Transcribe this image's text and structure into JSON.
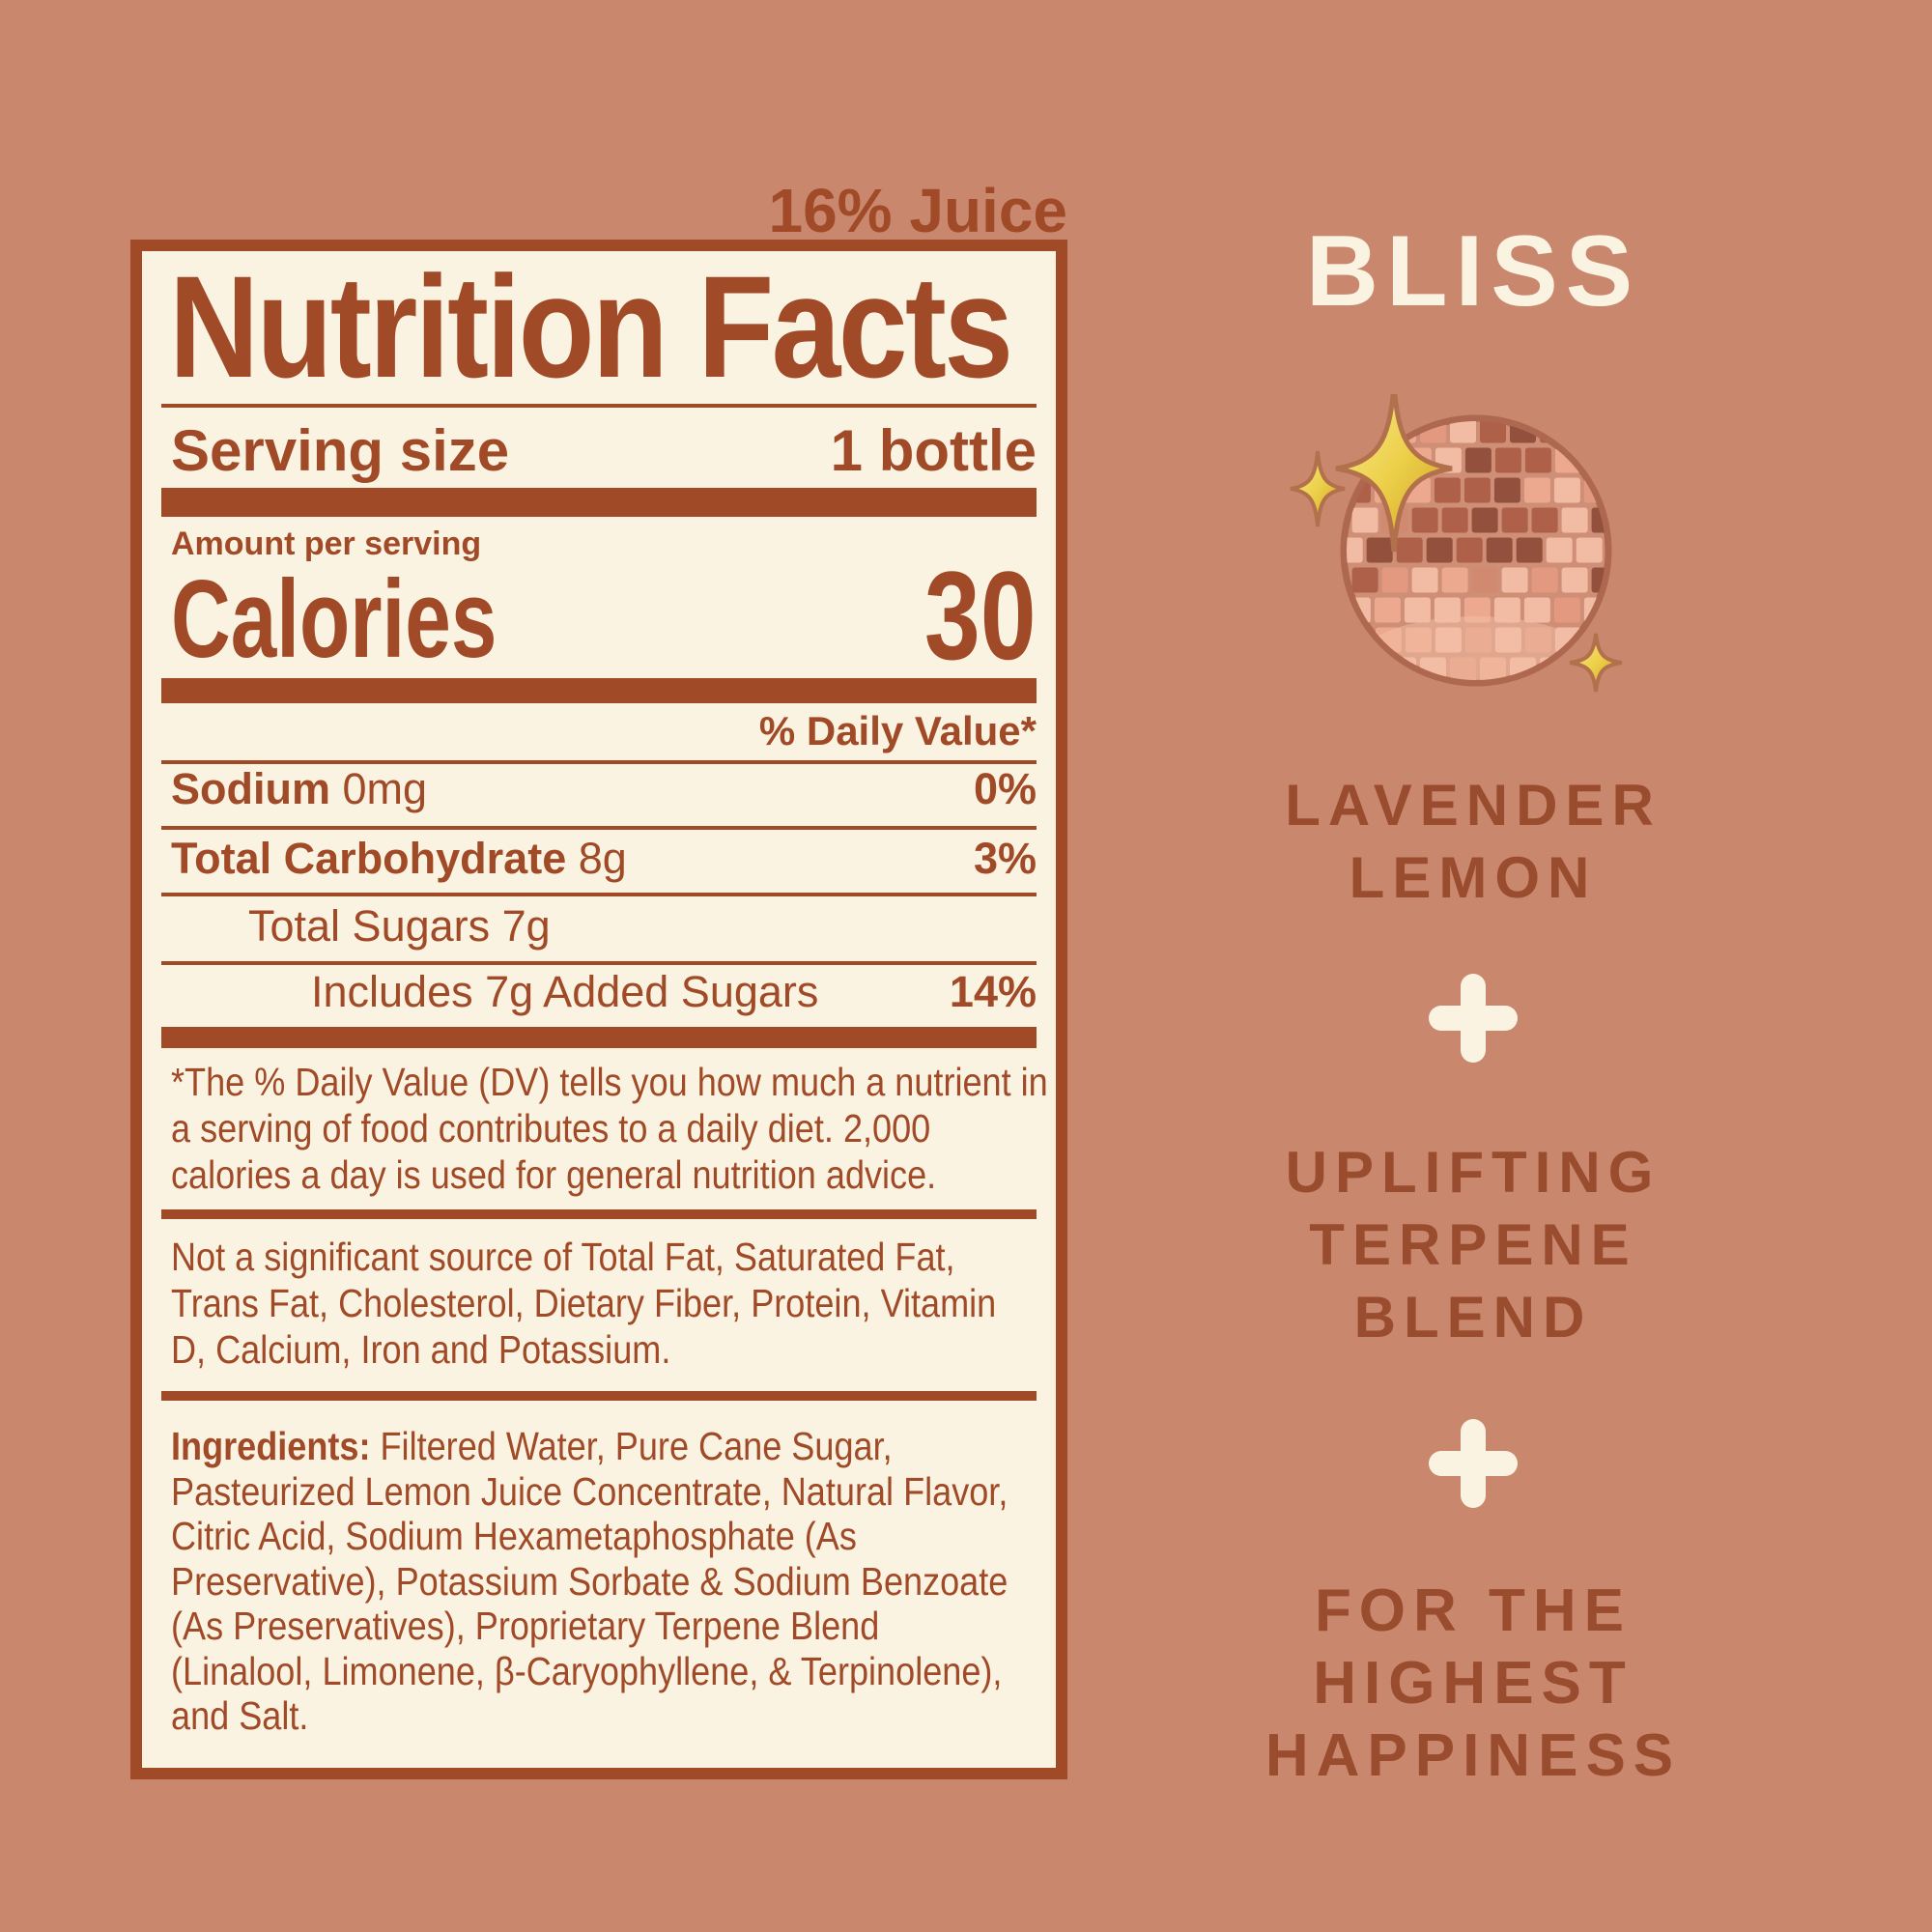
{
  "colors": {
    "background": "#C9876E",
    "cream": "#FAF3E1",
    "rust": "#A14A28",
    "brand_text": "#9A4C2F",
    "sparkle_gold": "#EDD04A",
    "ball_pink": "#E8A78F"
  },
  "juice_note": "16% Juice",
  "nutrition_facts": {
    "title": "Nutrition Facts",
    "serving_size_label": "Serving size",
    "serving_size_value": "1 bottle",
    "amount_per_serving_label": "Amount per serving",
    "calories_label": "Calories",
    "calories_value": "30",
    "daily_value_header": "% Daily Value*",
    "rows": [
      {
        "label": "Sodium",
        "amount": "0mg",
        "dv": "0%"
      },
      {
        "label": "Total Carbohydrate",
        "amount": "8g",
        "dv": "3%"
      },
      {
        "label": "Total Sugars",
        "amount": "7g",
        "dv": ""
      },
      {
        "label": "Includes 7g Added Sugars",
        "amount": "",
        "dv": "14%"
      }
    ],
    "footnote": "*The % Daily Value (DV) tells you how much a nutrient in a serving of food contributes to a daily diet. 2,000 calories a day is used for general nutrition advice.",
    "not_significant_note": "Not a significant source of Total Fat, Saturated Fat, Trans Fat, Cholesterol, Dietary Fiber, Protein, Vitamin D, Calcium, Iron and Potassium.",
    "ingredients_label": "Ingredients:",
    "ingredients": "Filtered Water, Pure Cane Sugar, Pasteurized Lemon Juice Concentrate, Natural Flavor, Citric Acid, Sodium Hexametaphosphate (As Preservative), Potassium Sorbate & Sodium Benzoate (As Preservatives), Proprietary Terpene Blend (Linalool, Limonene, β-Caryophyllene, & Terpinolene), and Salt."
  },
  "brand_panel": {
    "brand_name": "BLISS",
    "flavor_lines": [
      "LAVENDER",
      "LEMON"
    ],
    "plus_symbol": "+",
    "benefit_lines": [
      "UPLIFTING",
      "TERPENE",
      "BLEND"
    ],
    "tagline_lines": [
      "FOR THE",
      "HIGHEST",
      "HAPPINESS"
    ],
    "icons": [
      "disco-ball-icon",
      "sparkle-icon",
      "plus-icon"
    ]
  }
}
